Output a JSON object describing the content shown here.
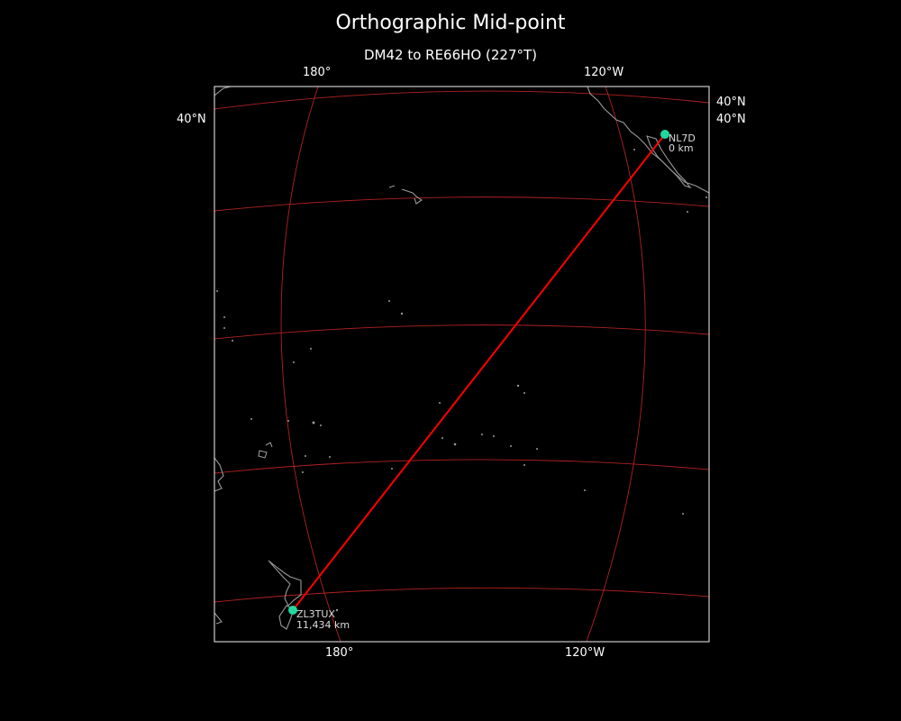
{
  "title": "Orthographic Mid-point",
  "subtitle": "DM42 to RE66HO (227°T)",
  "ticks": {
    "top": [
      "180°",
      "120°W"
    ],
    "bottom": [
      "180°",
      "120°W"
    ],
    "left": [
      "40°N"
    ],
    "right": [
      "40°N",
      "40°N"
    ]
  },
  "stations": [
    {
      "call": "NL7D",
      "distance": "0 km"
    },
    {
      "call": "ZL3TUX",
      "distance": "11,434 km"
    }
  ],
  "colors": {
    "background": "#000000",
    "path": "#ff0000",
    "graticule": "#b22222",
    "coastline": "#999999",
    "marker": "#1fd8a0",
    "frame": "#cccccc"
  }
}
